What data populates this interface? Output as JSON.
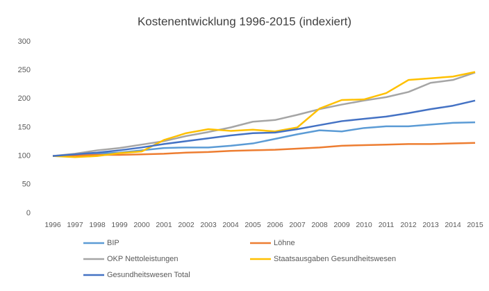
{
  "chart_data": {
    "type": "line",
    "title": "Kostenentwicklung 1996-2015 (indexiert)",
    "categories": [
      "1996",
      "1997",
      "1998",
      "1999",
      "2000",
      "2001",
      "2002",
      "2003",
      "2004",
      "2005",
      "2006",
      "2007",
      "2008",
      "2009",
      "2010",
      "2011",
      "2012",
      "2013",
      "2014",
      "2015"
    ],
    "series": [
      {
        "name": "BIP",
        "color": "#5b9bd5",
        "values": [
          100,
          102,
          104,
          106,
          110,
          114,
          115,
          115,
          118,
          122,
          130,
          138,
          145,
          143,
          149,
          152,
          152,
          155,
          158,
          159
        ]
      },
      {
        "name": "Löhne",
        "color": "#ed7d31",
        "values": [
          100,
          101,
          102,
          102,
          103,
          104,
          106,
          107,
          109,
          110,
          111,
          113,
          115,
          118,
          119,
          120,
          121,
          121,
          122,
          123
        ]
      },
      {
        "name": "OKP Nettoleistungen",
        "color": "#a5a5a5",
        "values": [
          100,
          104,
          110,
          114,
          120,
          126,
          135,
          142,
          150,
          160,
          163,
          172,
          182,
          190,
          197,
          203,
          212,
          228,
          233,
          246
        ]
      },
      {
        "name": "Staatsausgaben Gesundheitswesen",
        "color": "#ffc000",
        "values": [
          100,
          98,
          100,
          105,
          108,
          128,
          140,
          147,
          144,
          146,
          143,
          150,
          183,
          198,
          199,
          210,
          233,
          236,
          239,
          247
        ]
      },
      {
        "name": "Gesundheitswesen Total",
        "color": "#4472c4",
        "values": [
          100,
          103,
          106,
          110,
          115,
          121,
          126,
          131,
          136,
          140,
          141,
          147,
          154,
          161,
          165,
          169,
          175,
          182,
          188,
          197
        ]
      }
    ],
    "ylim": [
      0,
      300
    ],
    "yticks": [
      0,
      50,
      100,
      150,
      200,
      250,
      300
    ],
    "grid": false,
    "legend": "bottom"
  }
}
